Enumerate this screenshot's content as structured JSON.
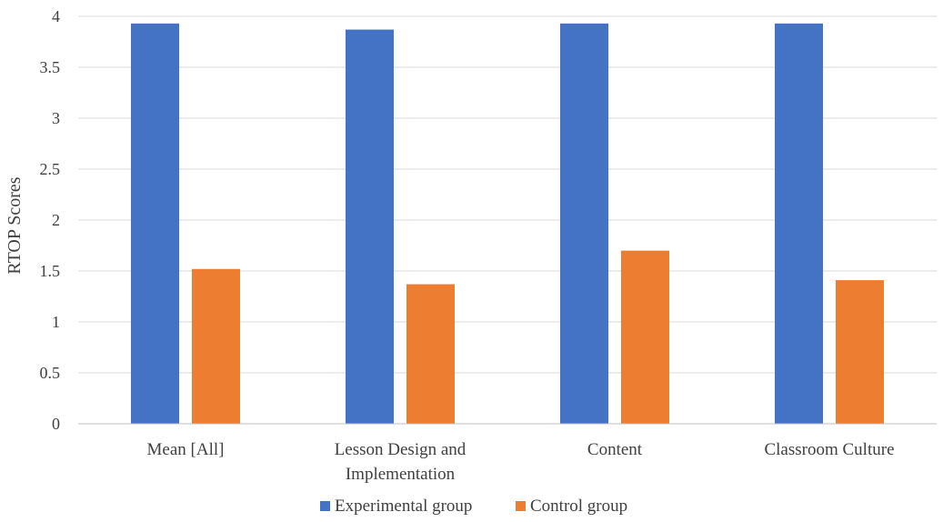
{
  "chart_data": {
    "type": "bar",
    "title": "",
    "xlabel": "",
    "ylabel": "RTOP Scores",
    "ylim": [
      0,
      4
    ],
    "yticks": [
      "0",
      "0.5",
      "1",
      "1.5",
      "2",
      "2.5",
      "3",
      "3.5",
      "4"
    ],
    "ytick_values": [
      0,
      0.5,
      1,
      1.5,
      2,
      2.5,
      3,
      3.5,
      4
    ],
    "grid": true,
    "legend_position": "bottom",
    "categories": [
      [
        "Mean [All]"
      ],
      [
        "Lesson Design and",
        "Implementation"
      ],
      [
        "Content"
      ],
      [
        "Classroom Culture"
      ]
    ],
    "series": [
      {
        "name": "Experimental group",
        "color": "#4472C4",
        "values": [
          3.93,
          3.87,
          3.93,
          3.93
        ]
      },
      {
        "name": "Control group",
        "color": "#ED7D31",
        "values": [
          1.52,
          1.37,
          1.7,
          1.41
        ]
      }
    ]
  }
}
